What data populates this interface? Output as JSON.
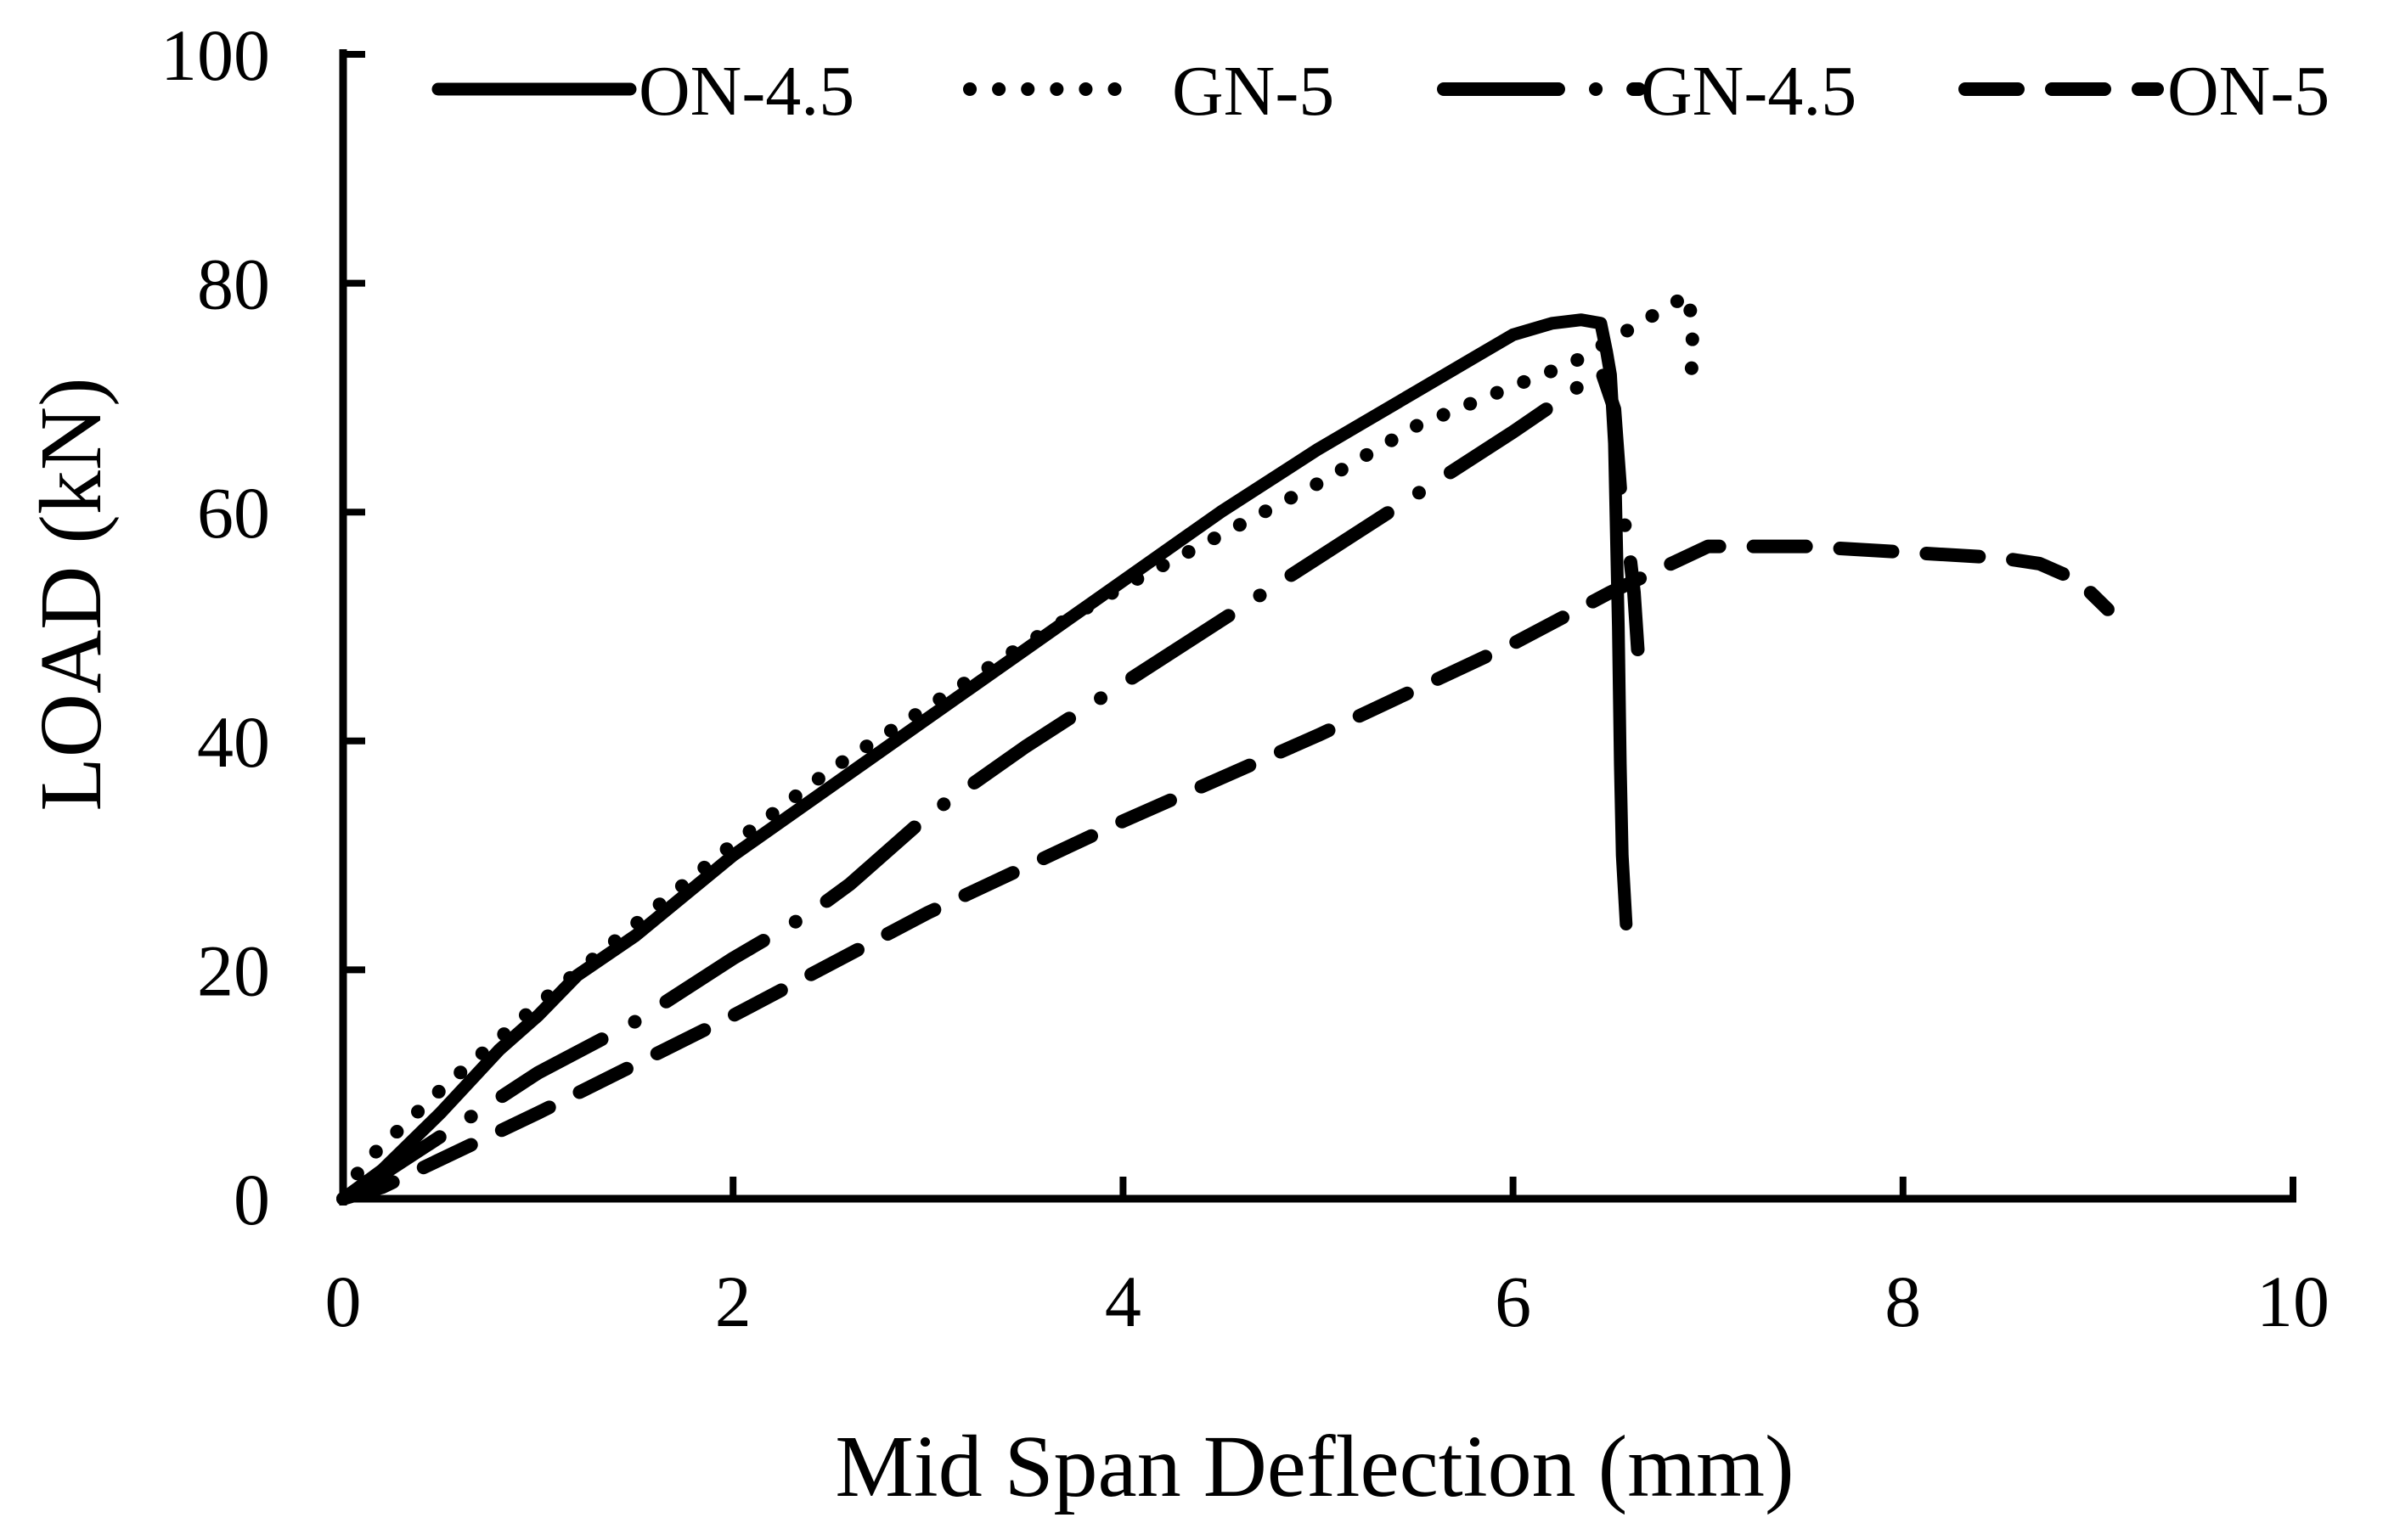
{
  "chart_data": {
    "type": "line",
    "xlabel": "Mid Span Deflection (mm)",
    "ylabel": "LOAD (kN)",
    "xlim": [
      0,
      10
    ],
    "ylim": [
      0,
      100
    ],
    "xticks": [
      0,
      2,
      4,
      6,
      8,
      10
    ],
    "yticks": [
      0,
      20,
      40,
      60,
      80,
      100
    ],
    "grid": false,
    "legend_position": "top",
    "series": [
      {
        "name": "ON-4.5",
        "style": "solid",
        "x": [
          0,
          0.2,
          0.5,
          0.8,
          1.0,
          1.2,
          1.5,
          2.0,
          2.5,
          3.0,
          3.5,
          4.0,
          4.5,
          5.0,
          5.5,
          5.8,
          6.0,
          6.2,
          6.35,
          6.45,
          6.48,
          6.5,
          6.52,
          6.54,
          6.55,
          6.56,
          6.58
        ],
        "y": [
          0,
          2.5,
          7.5,
          13,
          16,
          19.5,
          23,
          30,
          36,
          42,
          48,
          54,
          60,
          65.5,
          70.5,
          73.5,
          75.5,
          76.5,
          76.8,
          76.5,
          74,
          72,
          66,
          50,
          38,
          30,
          24
        ]
      },
      {
        "name": "GN-5",
        "style": "dotted",
        "x": [
          0,
          0.1,
          0.5,
          1.0,
          1.5,
          2.0,
          2.5,
          3.0,
          3.5,
          4.0,
          4.5,
          5.0,
          5.5,
          6.0,
          6.3,
          6.5,
          6.7,
          6.9,
          6.92,
          6.92,
          6.91
        ],
        "y": [
          0,
          3,
          9.5,
          17,
          24,
          31,
          37.5,
          43,
          48.5,
          53.5,
          58,
          62.5,
          67.5,
          71,
          73,
          75,
          77,
          79,
          76,
          74,
          70.5
        ]
      },
      {
        "name": "GN-4.5",
        "style": "dash-dot",
        "x": [
          0,
          0.1,
          1.0,
          1.5,
          2.0,
          2.4,
          2.6,
          3.0,
          3.5,
          4.0,
          4.5,
          5.0,
          5.5,
          6.0,
          6.3,
          6.45,
          6.52,
          6.55,
          6.58,
          6.6,
          6.62,
          6.64
        ],
        "y": [
          0,
          1,
          11,
          15.5,
          21,
          25,
          27.5,
          33.5,
          39.5,
          45,
          50.5,
          56,
          61.5,
          67,
          70.5,
          72.5,
          69,
          62,
          58,
          56,
          53,
          48
        ]
      },
      {
        "name": "ON-5",
        "style": "dashed",
        "x": [
          0,
          0.2,
          1.0,
          2.0,
          3.0,
          4.0,
          5.0,
          6.0,
          6.5,
          7.0,
          7.5,
          8.0,
          8.5,
          8.7,
          8.9,
          9.05
        ],
        "y": [
          0,
          1,
          7.5,
          16,
          25,
          33,
          40.5,
          48.5,
          53,
          57,
          57,
          56.5,
          56,
          55.5,
          54,
          51.5
        ]
      }
    ]
  }
}
